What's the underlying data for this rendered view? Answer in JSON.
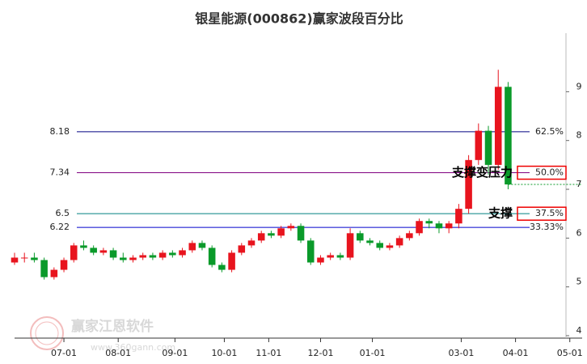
{
  "chart_data": {
    "type": "candlestick",
    "title": "银星能源(000862)赢家波段百分比",
    "x": [
      0,
      4,
      8,
      12,
      16,
      20,
      24,
      28,
      32,
      36,
      40,
      44,
      48,
      52,
      56,
      60,
      64,
      68,
      72,
      76,
      80,
      84,
      88,
      92,
      96,
      100,
      104,
      108,
      112,
      116,
      120,
      124,
      128,
      132,
      136,
      140,
      144,
      148,
      152,
      156,
      160,
      164,
      168,
      172,
      176,
      180,
      184,
      188,
      192,
      196,
      200
    ],
    "open": [
      5.5,
      5.6,
      5.6,
      5.55,
      5.2,
      5.35,
      5.55,
      5.85,
      5.8,
      5.7,
      5.75,
      5.6,
      5.55,
      5.6,
      5.65,
      5.6,
      5.7,
      5.65,
      5.75,
      5.9,
      5.8,
      5.45,
      5.35,
      5.7,
      5.85,
      5.95,
      6.1,
      6.05,
      6.2,
      6.25,
      5.95,
      5.5,
      5.6,
      5.65,
      5.6,
      6.1,
      5.95,
      5.9,
      5.8,
      5.85,
      6.0,
      6.1,
      6.35,
      6.3,
      6.2,
      6.3,
      6.6,
      7.6,
      8.2,
      7.5,
      9.1
    ],
    "high": [
      5.7,
      5.7,
      5.7,
      5.6,
      5.4,
      5.6,
      5.9,
      5.95,
      5.85,
      5.8,
      5.8,
      5.7,
      5.65,
      5.7,
      5.7,
      5.75,
      5.75,
      5.8,
      5.95,
      5.95,
      5.85,
      5.5,
      5.75,
      5.9,
      6.0,
      6.15,
      6.15,
      6.25,
      6.3,
      6.3,
      6.0,
      5.65,
      5.7,
      5.7,
      6.2,
      6.15,
      6.0,
      5.95,
      5.9,
      6.05,
      6.15,
      6.4,
      6.4,
      6.35,
      6.35,
      6.7,
      7.7,
      8.35,
      8.3,
      9.45,
      9.2
    ],
    "low": [
      5.45,
      5.5,
      5.5,
      5.15,
      5.15,
      5.3,
      5.5,
      5.75,
      5.65,
      5.65,
      5.55,
      5.5,
      5.5,
      5.55,
      5.55,
      5.55,
      5.6,
      5.6,
      5.7,
      5.75,
      5.4,
      5.3,
      5.3,
      5.65,
      5.8,
      5.9,
      6.0,
      6.0,
      6.15,
      5.9,
      5.45,
      5.45,
      5.55,
      5.55,
      5.55,
      5.9,
      5.85,
      5.75,
      5.75,
      5.8,
      5.95,
      6.05,
      6.2,
      6.1,
      6.1,
      6.2,
      6.5,
      7.5,
      7.3,
      7.4,
      7.0
    ],
    "close": [
      5.6,
      5.6,
      5.55,
      5.2,
      5.35,
      5.55,
      5.85,
      5.8,
      5.7,
      5.75,
      5.6,
      5.55,
      5.6,
      5.65,
      5.6,
      5.7,
      5.65,
      5.75,
      5.9,
      5.8,
      5.45,
      5.35,
      5.7,
      5.85,
      5.95,
      6.1,
      6.05,
      6.2,
      6.25,
      5.95,
      5.5,
      5.6,
      5.65,
      5.6,
      6.1,
      5.95,
      5.9,
      5.8,
      5.85,
      6.0,
      6.1,
      6.35,
      6.3,
      6.2,
      6.3,
      6.6,
      7.6,
      8.2,
      7.5,
      9.1,
      7.1
    ],
    "up_color": "#e8141e",
    "down_color": "#0a9a2a",
    "xlim": [
      0,
      230
    ],
    "xticks": [
      {
        "value": 20,
        "label": "07-01"
      },
      {
        "value": 42,
        "label": "08-01"
      },
      {
        "value": 65,
        "label": "09-01"
      },
      {
        "value": 85,
        "label": "10-01"
      },
      {
        "value": 103,
        "label": "11-01"
      },
      {
        "value": 124,
        "label": "12-01"
      },
      {
        "value": 145,
        "label": "01-01"
      },
      {
        "value": 181,
        "label": "03-01"
      },
      {
        "value": 203,
        "label": "04-01"
      },
      {
        "value": 225,
        "label": "05-01"
      }
    ],
    "ylim": [
      3.95,
      10.2
    ],
    "yticks": [
      4,
      5,
      6,
      7,
      8,
      9
    ],
    "levels": [
      {
        "value": 8.18,
        "label": "62.5%",
        "color": "#000080",
        "boxed": false
      },
      {
        "value": 7.34,
        "label": "50.0%",
        "color": "#800080",
        "boxed": true
      },
      {
        "value": 6.5,
        "label": "37.5%",
        "color": "#008080",
        "boxed": true
      },
      {
        "value": 6.22,
        "label": "33.33%",
        "color": "#0000cc",
        "boxed": false
      }
    ],
    "annotations": [
      {
        "text": "支撑变压力",
        "level": 1
      },
      {
        "text": "支撑",
        "level": 2
      }
    ],
    "watermark": [
      "赢家江恩软件",
      "www.360gann.com"
    ]
  }
}
